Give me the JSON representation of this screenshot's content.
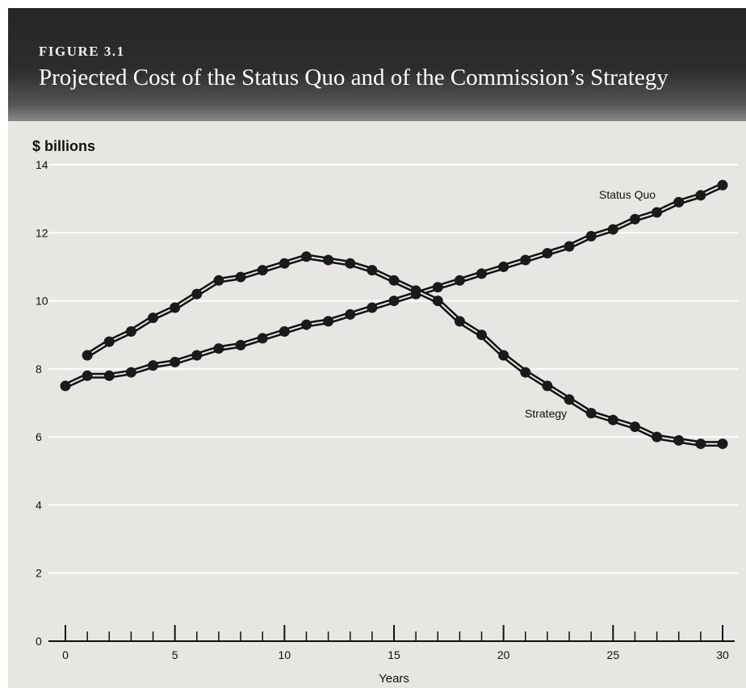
{
  "figure": {
    "label": "FIGURE 3.1",
    "title": "Projected Cost of the Status Quo and of the Commission’s Strategy"
  },
  "chart_data": {
    "type": "line",
    "title": "Projected Cost of the Status Quo and of the Commission’s Strategy",
    "ylabel": "$ billions",
    "xlabel": "Years",
    "xlim": [
      0,
      30
    ],
    "ylim": [
      0,
      14
    ],
    "xticks": [
      0,
      5,
      10,
      15,
      20,
      25,
      30
    ],
    "yticks": [
      0,
      2,
      4,
      6,
      8,
      10,
      12,
      14
    ],
    "grid": "horizontal",
    "series": [
      {
        "name": "Status Quo",
        "x": [
          0,
          1,
          2,
          3,
          4,
          5,
          6,
          7,
          8,
          9,
          10,
          11,
          12,
          13,
          14,
          15,
          16,
          17,
          18,
          19,
          20,
          21,
          22,
          23,
          24,
          25,
          26,
          27,
          28,
          29,
          30
        ],
        "values": [
          7.5,
          7.8,
          7.8,
          7.9,
          8.1,
          8.2,
          8.4,
          8.6,
          8.7,
          8.9,
          9.1,
          9.3,
          9.4,
          9.6,
          9.8,
          10.0,
          10.2,
          10.4,
          10.6,
          10.8,
          11.0,
          11.2,
          11.4,
          11.6,
          11.9,
          12.1,
          12.4,
          12.6,
          12.9,
          13.1,
          13.4
        ]
      },
      {
        "name": "Strategy",
        "x": [
          1,
          2,
          3,
          4,
          5,
          6,
          7,
          8,
          9,
          10,
          11,
          12,
          13,
          14,
          15,
          16,
          17,
          18,
          19,
          20,
          21,
          22,
          23,
          24,
          25,
          26,
          27,
          28,
          29,
          30
        ],
        "values": [
          8.4,
          8.8,
          9.1,
          9.5,
          9.8,
          10.2,
          10.6,
          10.7,
          10.9,
          11.1,
          11.3,
          11.2,
          11.1,
          10.9,
          10.6,
          10.3,
          10.0,
          9.4,
          9.0,
          8.4,
          7.9,
          7.5,
          7.1,
          6.7,
          6.5,
          6.3,
          6.0,
          5.9,
          5.8,
          5.8
        ]
      }
    ],
    "annotations": [
      "Status Quo",
      "Strategy"
    ]
  }
}
